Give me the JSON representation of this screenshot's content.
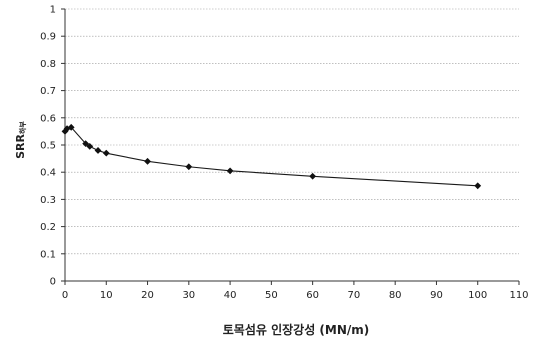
{
  "chart_data": {
    "type": "line",
    "title": "",
    "xlabel": "토목섬유 인장강성 (MN/m)",
    "ylabel": {
      "main": "SRR",
      "sub": "하부"
    },
    "xlim": [
      0,
      110
    ],
    "ylim": [
      0,
      1
    ],
    "xticks": [
      0,
      10,
      20,
      30,
      40,
      50,
      60,
      70,
      80,
      90,
      100,
      110
    ],
    "xtick_labels": [
      "0",
      "10",
      "20",
      "30",
      "40",
      "50",
      "60",
      "70",
      "80",
      "90",
      "100",
      "110"
    ],
    "yticks": [
      0,
      0.1,
      0.2,
      0.3,
      0.4,
      0.5,
      0.6,
      0.7,
      0.8,
      0.9,
      1
    ],
    "ytick_labels": [
      "0",
      "0.1",
      "0.2",
      "0.3",
      "0.4",
      "0.5",
      "0.6",
      "0.7",
      "0.8",
      "0.9",
      "1"
    ],
    "grid": true,
    "legend": "none",
    "series": [
      {
        "x": [
          0,
          0.5,
          1.5,
          5,
          6,
          8,
          10,
          20,
          30,
          40,
          60,
          100
        ],
        "y": [
          0.55,
          0.56,
          0.565,
          0.505,
          0.495,
          0.48,
          0.47,
          0.44,
          0.42,
          0.405,
          0.385,
          0.35
        ],
        "color": "#111111",
        "marker": "diamond"
      }
    ]
  }
}
